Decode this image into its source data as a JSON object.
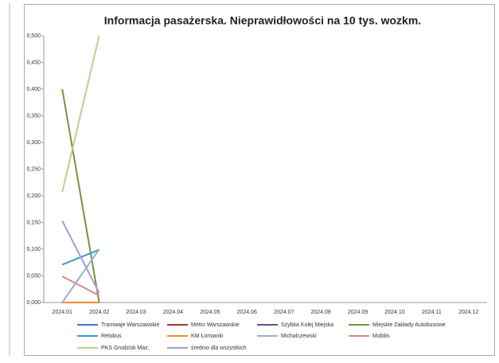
{
  "chart_data": {
    "type": "line",
    "title": "Informacja pasażerska. Nieprawidłowości na 10 tys. wozkm.",
    "categories": [
      "2024.01",
      "2024.02",
      "2024.03",
      "2024.04",
      "2024.05",
      "2024.06",
      "2024.07",
      "2024.08",
      "2024.09",
      "2024.10",
      "2024.11",
      "2024.12"
    ],
    "ylim": [
      0,
      0.5
    ],
    "yticks": [
      {
        "value": 0,
        "label": "0,000"
      },
      {
        "value": 0.05,
        "label": "0,050"
      },
      {
        "value": 0.1,
        "label": "0,100"
      },
      {
        "value": 0.15,
        "label": "0,150"
      },
      {
        "value": 0.2,
        "label": "0,200"
      },
      {
        "value": 0.25,
        "label": "0,250"
      },
      {
        "value": 0.3,
        "label": "0,300"
      },
      {
        "value": 0.35,
        "label": "0,350"
      },
      {
        "value": 0.4,
        "label": "0,400"
      },
      {
        "value": 0.45,
        "label": "0,450"
      },
      {
        "value": 0.5,
        "label": "0,500"
      }
    ],
    "legend": "bottom",
    "series": [
      {
        "name": "Tramwaje Warszawskie",
        "color": "#4472c4",
        "values": [
          0,
          0,
          null,
          null,
          null,
          null,
          null,
          null,
          null,
          null,
          null,
          null
        ]
      },
      {
        "name": "Metro Warszawskie",
        "color": "#a5373a",
        "values": [
          0,
          0,
          null,
          null,
          null,
          null,
          null,
          null,
          null,
          null,
          null,
          null
        ]
      },
      {
        "name": "Szybka Kolej Miejska",
        "color": "#6a4c8c",
        "values": [
          0,
          0,
          null,
          null,
          null,
          null,
          null,
          null,
          null,
          null,
          null,
          null
        ]
      },
      {
        "name": "Miejskie Zakłady Autobusowe",
        "color": "#77933c",
        "values": [
          0.4,
          0,
          null,
          null,
          null,
          null,
          null,
          null,
          null,
          null,
          null,
          null
        ]
      },
      {
        "name": "Relobus",
        "color": "#31a0c0",
        "values": [
          0.071,
          0.099,
          null,
          null,
          null,
          null,
          null,
          null,
          null,
          null,
          null,
          null
        ]
      },
      {
        "name": "KM Łomianki",
        "color": "#f28a2e",
        "values": [
          0,
          0,
          null,
          null,
          null,
          null,
          null,
          null,
          null,
          null,
          null,
          null
        ]
      },
      {
        "name": "Michalczewski",
        "color": "#95b3d7",
        "values": [
          0,
          0.1,
          null,
          null,
          null,
          null,
          null,
          null,
          null,
          null,
          null,
          null
        ]
      },
      {
        "name": "Mobilis",
        "color": "#d98a88",
        "values": [
          0.049,
          0.013,
          null,
          null,
          null,
          null,
          null,
          null,
          null,
          null,
          null,
          null
        ]
      },
      {
        "name": "PKS Grodzisk Maz.",
        "color": "#b8d38f",
        "values": [
          0.207,
          0.5,
          null,
          null,
          null,
          null,
          null,
          null,
          null,
          null,
          null,
          null
        ]
      },
      {
        "name": "średnio dla wszystkich",
        "color": "#a99bd0",
        "values": [
          0.153,
          0.018,
          null,
          null,
          null,
          null,
          null,
          null,
          null,
          null,
          null,
          null
        ]
      }
    ]
  }
}
